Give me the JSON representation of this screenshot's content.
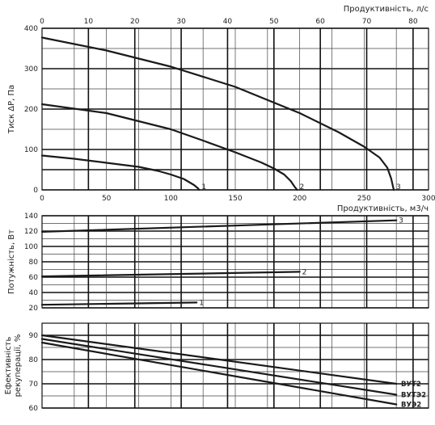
{
  "chart_data": [
    {
      "type": "line",
      "id": "pressure",
      "xlabel": "Продуктивність, м3/ч",
      "x2label": "Продуктивність, л/с",
      "ylabel": "Тиск ΔР, Па",
      "xlim": [
        0,
        300
      ],
      "ylim": [
        0,
        400
      ],
      "xticks": [
        0,
        50,
        100,
        150,
        200,
        250,
        300
      ],
      "x2ticks": [
        0,
        10,
        20,
        30,
        40,
        50,
        60,
        70,
        80
      ],
      "x2_factor": 3.6,
      "yticks": [
        0,
        100,
        200,
        300,
        400
      ],
      "grid": true,
      "series": [
        {
          "name": "1",
          "x": [
            0,
            25,
            50,
            75,
            90,
            100,
            110,
            118,
            121,
            122
          ],
          "y": [
            85,
            77,
            67,
            57,
            47,
            38,
            27,
            12,
            4,
            0
          ]
        },
        {
          "name": "2",
          "x": [
            0,
            50,
            100,
            125,
            150,
            170,
            180,
            188,
            193,
            196,
            198
          ],
          "y": [
            212,
            190,
            150,
            122,
            93,
            68,
            53,
            38,
            22,
            8,
            0
          ]
        },
        {
          "name": "3",
          "x": [
            0,
            50,
            100,
            150,
            200,
            230,
            250,
            262,
            268,
            271,
            273
          ],
          "y": [
            377,
            345,
            305,
            255,
            190,
            143,
            107,
            80,
            55,
            28,
            0
          ]
        }
      ]
    },
    {
      "type": "line",
      "id": "power",
      "xlabel": "",
      "ylabel": "Потужність, Вт",
      "xlim": [
        0,
        300
      ],
      "ylim": [
        20,
        140
      ],
      "yticks": [
        20,
        40,
        60,
        80,
        100,
        120,
        140
      ],
      "grid": true,
      "series": [
        {
          "name": "1",
          "x": [
            0,
            120
          ],
          "y": [
            24,
            27
          ]
        },
        {
          "name": "2",
          "x": [
            0,
            200
          ],
          "y": [
            61,
            67
          ]
        },
        {
          "name": "3",
          "x": [
            0,
            275
          ],
          "y": [
            119,
            134
          ]
        }
      ]
    },
    {
      "type": "line",
      "id": "efficiency",
      "xlabel": "",
      "ylabel": "Ефективність рекуперації, %",
      "xlim": [
        0,
        300
      ],
      "ylim": [
        60,
        95
      ],
      "yticks": [
        60,
        70,
        80,
        90
      ],
      "grid": true,
      "series": [
        {
          "name": "ВУТ2",
          "x": [
            0,
            275
          ],
          "y": [
            90,
            70
          ]
        },
        {
          "name": "ВУТЭ2",
          "x": [
            0,
            275
          ],
          "y": [
            88.5,
            65.5
          ]
        },
        {
          "name": "ВУЭ2",
          "x": [
            0,
            275
          ],
          "y": [
            87,
            61.5
          ]
        }
      ]
    }
  ]
}
